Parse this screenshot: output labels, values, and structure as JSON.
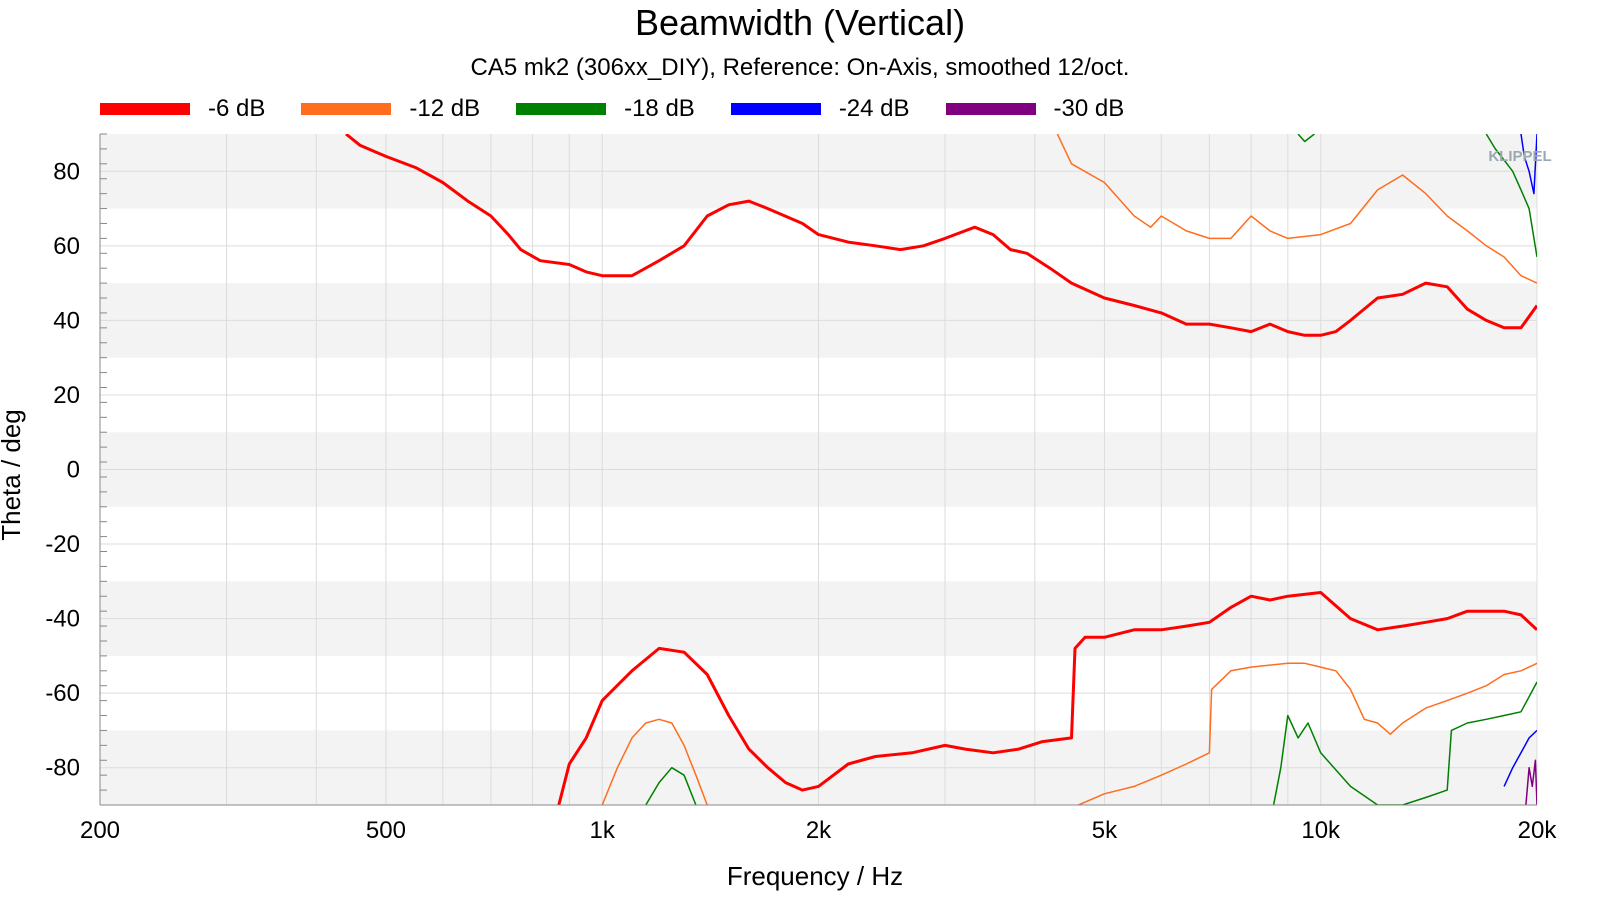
{
  "chart_data": {
    "type": "line",
    "title": "Beamwidth (Vertical)",
    "subtitle": "CA5 mk2 (306xx_DIY), Reference: On-Axis, smoothed 12/oct.",
    "xlabel": "Frequency / Hz",
    "ylabel": "Theta / deg",
    "xscale": "log",
    "xlim": [
      200,
      20000
    ],
    "ylim": [
      -90,
      90
    ],
    "x_ticks": [
      {
        "value": 200,
        "label": "200"
      },
      {
        "value": 500,
        "label": "500"
      },
      {
        "value": 1000,
        "label": "1k"
      },
      {
        "value": 2000,
        "label": "2k"
      },
      {
        "value": 5000,
        "label": "5k"
      },
      {
        "value": 10000,
        "label": "10k"
      },
      {
        "value": 20000,
        "label": "20k"
      }
    ],
    "y_ticks": [
      {
        "value": 80,
        "label": "80"
      },
      {
        "value": 60,
        "label": "60"
      },
      {
        "value": 40,
        "label": "40"
      },
      {
        "value": 20,
        "label": "20"
      },
      {
        "value": 0,
        "label": "0"
      },
      {
        "value": -20,
        "label": "-20"
      },
      {
        "value": -40,
        "label": "-40"
      },
      {
        "value": -60,
        "label": "-60"
      },
      {
        "value": -80,
        "label": "-80"
      }
    ],
    "grid": true,
    "legend_position": "top",
    "watermark": "KLIPPEL",
    "series": [
      {
        "name": "-6 dB",
        "color": "#ff0000",
        "segments": [
          [
            [
              440,
              90
            ],
            [
              460,
              87
            ],
            [
              500,
              84
            ],
            [
              550,
              81
            ],
            [
              600,
              77
            ],
            [
              650,
              72
            ],
            [
              700,
              68
            ],
            [
              740,
              63
            ],
            [
              770,
              59
            ],
            [
              820,
              56
            ],
            [
              900,
              55
            ],
            [
              950,
              53
            ],
            [
              1000,
              52
            ],
            [
              1100,
              52
            ],
            [
              1200,
              56
            ],
            [
              1300,
              60
            ],
            [
              1400,
              68
            ],
            [
              1500,
              71
            ],
            [
              1600,
              72
            ],
            [
              1700,
              70
            ],
            [
              1900,
              66
            ],
            [
              2000,
              63
            ],
            [
              2200,
              61
            ],
            [
              2400,
              60
            ],
            [
              2600,
              59
            ],
            [
              2800,
              60
            ],
            [
              3000,
              62
            ],
            [
              3300,
              65
            ],
            [
              3500,
              63
            ],
            [
              3700,
              59
            ],
            [
              3900,
              58
            ],
            [
              4200,
              54
            ],
            [
              4500,
              50
            ],
            [
              5000,
              46
            ],
            [
              5500,
              44
            ],
            [
              6000,
              42
            ],
            [
              6500,
              39
            ],
            [
              7000,
              39
            ],
            [
              7500,
              38
            ],
            [
              8000,
              37
            ],
            [
              8500,
              39
            ],
            [
              9000,
              37
            ],
            [
              9500,
              36
            ],
            [
              10000,
              36
            ],
            [
              10500,
              37
            ],
            [
              11000,
              40
            ],
            [
              12000,
              46
            ],
            [
              13000,
              47
            ],
            [
              14000,
              50
            ],
            [
              15000,
              49
            ],
            [
              16000,
              43
            ],
            [
              17000,
              40
            ],
            [
              18000,
              38
            ],
            [
              19000,
              38
            ],
            [
              20000,
              44
            ]
          ],
          [
            [
              870,
              -90
            ],
            [
              900,
              -79
            ],
            [
              950,
              -72
            ],
            [
              1000,
              -62
            ],
            [
              1100,
              -54
            ],
            [
              1200,
              -48
            ],
            [
              1300,
              -49
            ],
            [
              1400,
              -55
            ],
            [
              1500,
              -66
            ],
            [
              1600,
              -75
            ],
            [
              1700,
              -80
            ],
            [
              1800,
              -84
            ],
            [
              1900,
              -86
            ],
            [
              2000,
              -85
            ],
            [
              2200,
              -79
            ],
            [
              2400,
              -77
            ],
            [
              2700,
              -76
            ],
            [
              3000,
              -74
            ],
            [
              3200,
              -75
            ],
            [
              3500,
              -76
            ],
            [
              3800,
              -75
            ],
            [
              4100,
              -73
            ],
            [
              4500,
              -72
            ],
            [
              4550,
              -48
            ],
            [
              4700,
              -45
            ],
            [
              5000,
              -45
            ],
            [
              5500,
              -43
            ],
            [
              6000,
              -43
            ],
            [
              6500,
              -42
            ],
            [
              7000,
              -41
            ],
            [
              7500,
              -37
            ],
            [
              8000,
              -34
            ],
            [
              8500,
              -35
            ],
            [
              9000,
              -34
            ],
            [
              10000,
              -33
            ],
            [
              11000,
              -40
            ],
            [
              12000,
              -43
            ],
            [
              13000,
              -42
            ],
            [
              14000,
              -41
            ],
            [
              15000,
              -40
            ],
            [
              16000,
              -38
            ],
            [
              18000,
              -38
            ],
            [
              19000,
              -39
            ],
            [
              20000,
              -43
            ]
          ]
        ]
      },
      {
        "name": "-12 dB",
        "color": "#ff6d1f",
        "segments": [
          [
            [
              1000,
              -90
            ],
            [
              1050,
              -80
            ],
            [
              1100,
              -72
            ],
            [
              1150,
              -68
            ],
            [
              1200,
              -67
            ],
            [
              1250,
              -68
            ],
            [
              1300,
              -74
            ],
            [
              1350,
              -82
            ],
            [
              1400,
              -90
            ]
          ],
          [
            [
              4600,
              -90
            ],
            [
              5000,
              -87
            ],
            [
              5500,
              -85
            ],
            [
              6000,
              -82
            ],
            [
              6500,
              -79
            ],
            [
              7000,
              -76
            ],
            [
              7050,
              -59
            ],
            [
              7500,
              -54
            ],
            [
              8000,
              -53
            ],
            [
              9000,
              -52
            ],
            [
              9500,
              -52
            ],
            [
              10000,
              -53
            ],
            [
              10500,
              -54
            ],
            [
              11000,
              -59
            ],
            [
              11500,
              -67
            ],
            [
              12000,
              -68
            ],
            [
              12500,
              -71
            ],
            [
              13000,
              -68
            ],
            [
              14000,
              -64
            ],
            [
              15000,
              -62
            ],
            [
              16000,
              -60
            ],
            [
              17000,
              -58
            ],
            [
              18000,
              -55
            ],
            [
              19000,
              -54
            ],
            [
              20000,
              -52
            ]
          ],
          [
            [
              4300,
              90
            ],
            [
              4500,
              82
            ],
            [
              5000,
              77
            ],
            [
              5500,
              68
            ],
            [
              5800,
              65
            ],
            [
              6000,
              68
            ],
            [
              6500,
              64
            ],
            [
              7000,
              62
            ],
            [
              7500,
              62
            ],
            [
              8000,
              68
            ],
            [
              8500,
              64
            ],
            [
              9000,
              62
            ],
            [
              10000,
              63
            ],
            [
              11000,
              66
            ],
            [
              12000,
              75
            ],
            [
              13000,
              79
            ],
            [
              14000,
              74
            ],
            [
              15000,
              68
            ],
            [
              16000,
              64
            ],
            [
              17000,
              60
            ],
            [
              18000,
              57
            ],
            [
              19000,
              52
            ],
            [
              20000,
              50
            ]
          ]
        ]
      },
      {
        "name": "-18 dB",
        "color": "#008000",
        "segments": [
          [
            [
              1150,
              -90
            ],
            [
              1200,
              -84
            ],
            [
              1250,
              -80
            ],
            [
              1300,
              -82
            ],
            [
              1350,
              -90
            ]
          ],
          [
            [
              8600,
              -90
            ],
            [
              8800,
              -80
            ],
            [
              9000,
              -66
            ],
            [
              9300,
              -72
            ],
            [
              9600,
              -68
            ],
            [
              10000,
              -76
            ],
            [
              11000,
              -85
            ],
            [
              12000,
              -90
            ],
            [
              13000,
              -90
            ],
            [
              14000,
              -88
            ],
            [
              15000,
              -86
            ],
            [
              15200,
              -70
            ],
            [
              16000,
              -68
            ],
            [
              17000,
              -67
            ],
            [
              18000,
              -66
            ],
            [
              19000,
              -65
            ],
            [
              20000,
              -57
            ]
          ],
          [
            [
              9300,
              90
            ],
            [
              9500,
              88
            ],
            [
              9800,
              90
            ]
          ],
          [
            [
              17000,
              90
            ],
            [
              17500,
              86
            ],
            [
              18000,
              83
            ],
            [
              18500,
              80
            ],
            [
              19000,
              75
            ],
            [
              19500,
              70
            ],
            [
              20000,
              57
            ]
          ]
        ]
      },
      {
        "name": "-24 dB",
        "color": "#0000ff",
        "segments": [
          [
            [
              18000,
              -85
            ],
            [
              18500,
              -80
            ],
            [
              19000,
              -76
            ],
            [
              19500,
              -72
            ],
            [
              20000,
              -70
            ]
          ],
          [
            [
              19000,
              90
            ],
            [
              19200,
              84
            ],
            [
              19500,
              80
            ],
            [
              19800,
              74
            ],
            [
              20000,
              90
            ]
          ]
        ]
      },
      {
        "name": "-30 dB",
        "color": "#800080",
        "segments": [
          [
            [
              19300,
              -90
            ],
            [
              19500,
              -80
            ],
            [
              19700,
              -85
            ],
            [
              19900,
              -78
            ],
            [
              20000,
              -90
            ]
          ]
        ]
      }
    ]
  }
}
